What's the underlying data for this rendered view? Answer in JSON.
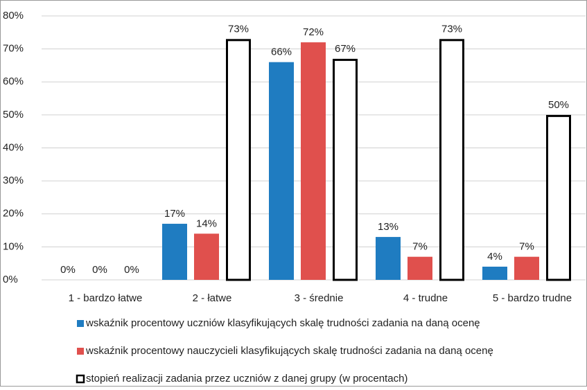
{
  "chart_data": {
    "type": "bar",
    "categories": [
      "1 - bardzo łatwe",
      "2 - łatwe",
      "3 - średnie",
      "4 - trudne",
      "5 - bardzo trudne"
    ],
    "series": [
      {
        "name": "wskaźnik procentowy uczniów klasyfikujących skalę trudności zadania na daną ocenę",
        "color": "#1f7cc1",
        "values": [
          0,
          17,
          66,
          13,
          4
        ],
        "value_labels": [
          "0%",
          "17%",
          "66%",
          "13%",
          "4%"
        ]
      },
      {
        "name": "wskaźnik procentowy nauczycieli klasyfikujących skalę trudności zadania na daną ocenę",
        "color": "#e0504d",
        "values": [
          0,
          14,
          72,
          7,
          7
        ],
        "value_labels": [
          "0%",
          "14%",
          "72%",
          "7%",
          "7%"
        ]
      },
      {
        "name": "stopień realizacji zadania przez uczniów z danej grupy (w procentach)",
        "color": "#ffffff",
        "edgecolor": "#000000",
        "values": [
          0,
          73,
          67,
          73,
          50
        ],
        "value_labels": [
          "0%",
          "73%",
          "67%",
          "73%",
          "50%"
        ]
      }
    ],
    "ylim": [
      0,
      80
    ],
    "yticks": [
      {
        "value": 0,
        "label": "0%"
      },
      {
        "value": 10,
        "label": "10%"
      },
      {
        "value": 20,
        "label": "20%"
      },
      {
        "value": 30,
        "label": "30%"
      },
      {
        "value": 40,
        "label": "40%"
      },
      {
        "value": 50,
        "label": "50%"
      },
      {
        "value": 60,
        "label": "60%"
      },
      {
        "value": 70,
        "label": "70%"
      },
      {
        "value": 80,
        "label": "80%"
      }
    ],
    "grid": true
  }
}
